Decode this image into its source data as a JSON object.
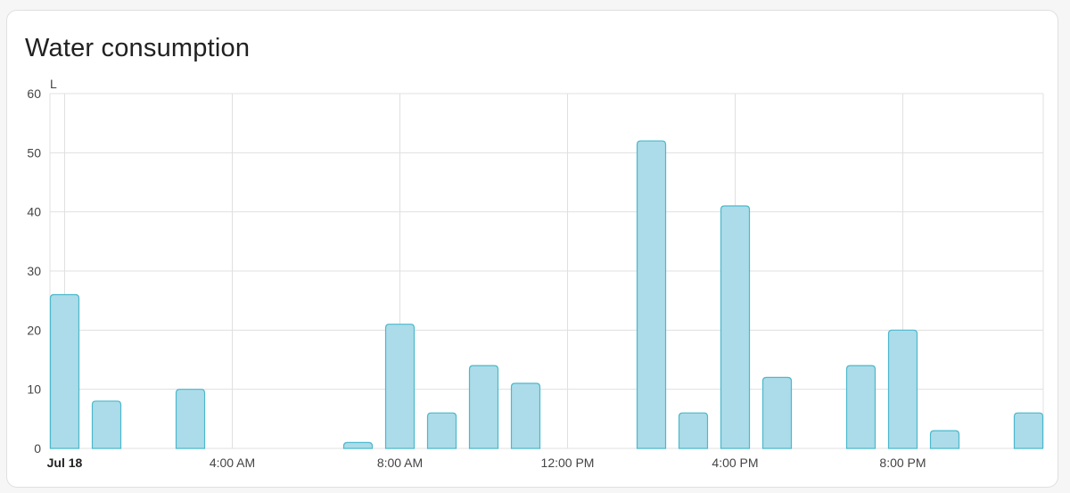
{
  "card": {
    "title": "Water consumption"
  },
  "colors": {
    "bar_fill": "#acdce9",
    "bar_stroke": "#4bb8cc",
    "grid": "#e0e0e0",
    "axis_text": "#444444"
  },
  "chart_data": {
    "type": "bar",
    "ylabel": "L",
    "ylim": [
      0,
      60
    ],
    "yticks": [
      0,
      10,
      20,
      30,
      40,
      50,
      60
    ],
    "xlim_hours": [
      -0.6,
      23.5
    ],
    "xticks": [
      {
        "hour": 0,
        "label": "Jul 18",
        "bold": true
      },
      {
        "hour": 4,
        "label": "4:00 AM",
        "bold": false
      },
      {
        "hour": 8,
        "label": "8:00 AM",
        "bold": false
      },
      {
        "hour": 12,
        "label": "12:00 PM",
        "bold": false
      },
      {
        "hour": 16,
        "label": "4:00 PM",
        "bold": false
      },
      {
        "hour": 20,
        "label": "8:00 PM",
        "bold": false
      }
    ],
    "grid": true,
    "x": [
      "00:00",
      "01:00",
      "02:00",
      "03:00",
      "04:00",
      "05:00",
      "06:00",
      "07:00",
      "08:00",
      "09:00",
      "10:00",
      "11:00",
      "12:00",
      "13:00",
      "14:00",
      "15:00",
      "16:00",
      "17:00",
      "18:00",
      "19:00",
      "20:00",
      "21:00",
      "22:00",
      "23:00"
    ],
    "values": [
      26,
      8,
      0,
      10,
      0,
      0,
      0,
      1,
      21,
      6,
      14,
      11,
      0,
      0,
      52,
      6,
      41,
      12,
      0,
      14,
      20,
      3,
      0,
      6
    ]
  }
}
